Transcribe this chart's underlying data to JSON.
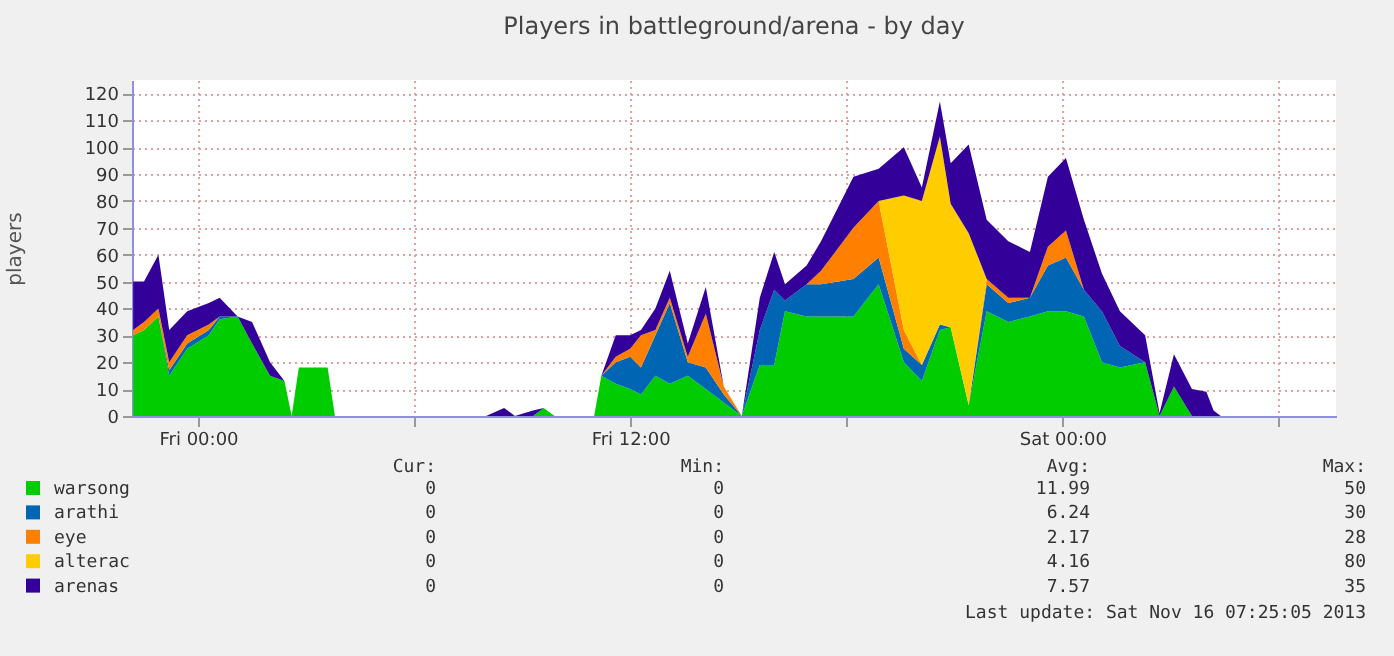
{
  "chart_data": {
    "type": "area",
    "stacked": true,
    "title": "Players in battleground/arena - by day",
    "ylabel": "players",
    "x": [
      "2013-11-14T22:12",
      "2013-11-14T22:30",
      "2013-11-14T22:54",
      "2013-11-14T23:12",
      "2013-11-14T23:42",
      "2013-11-15T00:18",
      "2013-11-15T00:36",
      "2013-11-15T01:06",
      "2013-11-15T01:30",
      "2013-11-15T02:00",
      "2013-11-15T02:24",
      "2013-11-15T02:36",
      "2013-11-15T02:48",
      "2013-11-15T03:36",
      "2013-11-15T03:48",
      "2013-11-15T08:00",
      "2013-11-15T08:30",
      "2013-11-15T08:48",
      "2013-11-15T09:18",
      "2013-11-15T09:36",
      "2013-11-15T09:54",
      "2013-11-15T11:00",
      "2013-11-15T11:12",
      "2013-11-15T11:36",
      "2013-11-15T12:00",
      "2013-11-15T12:18",
      "2013-11-15T12:42",
      "2013-11-15T13:06",
      "2013-11-15T13:36",
      "2013-11-15T14:06",
      "2013-11-15T14:36",
      "2013-11-15T15:06",
      "2013-11-15T15:36",
      "2013-11-15T16:00",
      "2013-11-15T16:18",
      "2013-11-15T16:54",
      "2013-11-15T17:18",
      "2013-11-15T18:12",
      "2013-11-15T18:54",
      "2013-11-15T19:36",
      "2013-11-15T20:06",
      "2013-11-15T20:36",
      "2013-11-15T20:54",
      "2013-11-15T21:24",
      "2013-11-15T21:54",
      "2013-11-15T22:30",
      "2013-11-15T23:06",
      "2013-11-15T23:36",
      "2013-11-16T00:06",
      "2013-11-16T00:36",
      "2013-11-16T01:06",
      "2013-11-16T01:36",
      "2013-11-16T02:18",
      "2013-11-16T02:42",
      "2013-11-16T03:06",
      "2013-11-16T03:36",
      "2013-11-16T04:00",
      "2013-11-16T04:12",
      "2013-11-16T04:24",
      "2013-11-16T07:36"
    ],
    "series": [
      {
        "name": "warsong",
        "color": "#00cc00",
        "values": [
          30,
          32,
          37,
          15,
          25,
          30,
          36,
          37,
          27,
          15,
          13,
          0,
          18,
          18,
          0,
          0,
          0,
          0,
          0,
          3,
          0,
          0,
          15,
          12,
          10,
          8,
          15,
          12,
          15,
          10,
          5,
          0,
          19,
          19,
          39,
          37,
          37,
          37,
          49,
          20,
          13,
          32,
          33,
          4,
          39,
          35,
          37,
          39,
          39,
          37,
          20,
          18,
          20,
          0,
          11,
          0,
          0,
          0,
          0,
          0
        ]
      },
      {
        "name": "arathi",
        "color": "#0066b3",
        "values": [
          0,
          0,
          0,
          2,
          2,
          2,
          1,
          0,
          0,
          0,
          0,
          0,
          0,
          0,
          0,
          0,
          0,
          0,
          0,
          0,
          0,
          0,
          0,
          8,
          12,
          10,
          15,
          30,
          5,
          8,
          3,
          0,
          13,
          28,
          4,
          12,
          12,
          14,
          10,
          5,
          6,
          2,
          0,
          0,
          10,
          7,
          7,
          17,
          20,
          10,
          19,
          8,
          0,
          0,
          0,
          0,
          0,
          0,
          0,
          0
        ]
      },
      {
        "name": "eye",
        "color": "#ff8000",
        "values": [
          2,
          3,
          3,
          3,
          3,
          2,
          0,
          0,
          0,
          0,
          0,
          0,
          0,
          0,
          0,
          0,
          0,
          0,
          0,
          0,
          0,
          0,
          0,
          2,
          3,
          12,
          2,
          2,
          2,
          20,
          3,
          0,
          0,
          0,
          0,
          0,
          5,
          19,
          21,
          7,
          0,
          0,
          0,
          0,
          2,
          2,
          0,
          7,
          10,
          0,
          0,
          0,
          0,
          0,
          0,
          0,
          0,
          0,
          0,
          0
        ]
      },
      {
        "name": "alterac",
        "color": "#ffcc00",
        "values": [
          0,
          0,
          0,
          0,
          0,
          0,
          0,
          0,
          0,
          0,
          0,
          0,
          0,
          0,
          0,
          0,
          0,
          0,
          0,
          0,
          0,
          0,
          0,
          0,
          0,
          0,
          0,
          0,
          0,
          0,
          0,
          0,
          0,
          0,
          0,
          0,
          0,
          0,
          0,
          50,
          61,
          70,
          46,
          64,
          0,
          0,
          0,
          0,
          0,
          0,
          0,
          0,
          0,
          0,
          0,
          0,
          0,
          0,
          0,
          0
        ]
      },
      {
        "name": "arenas",
        "color": "#330099",
        "values": [
          18,
          15,
          20,
          12,
          9,
          8,
          7,
          0,
          8,
          5,
          0,
          0,
          0,
          0,
          0,
          0,
          3,
          0,
          2,
          0,
          0,
          0,
          0,
          8,
          5,
          2,
          8,
          10,
          5,
          10,
          0,
          0,
          12,
          14,
          6,
          7,
          11,
          19,
          12,
          18,
          5,
          13,
          15,
          33,
          22,
          21,
          17,
          26,
          27,
          26,
          14,
          13,
          10,
          1,
          12,
          10,
          9,
          2,
          0,
          0
        ]
      }
    ],
    "xlim": [
      "2013-11-14T22:10",
      "2013-11-16T07:36"
    ],
    "xticks": [
      {
        "value": "2013-11-15T00:00",
        "label": "Fri 00:00"
      },
      {
        "value": "2013-11-15T06:00",
        "label": null
      },
      {
        "value": "2013-11-15T12:00",
        "label": "Fri 12:00"
      },
      {
        "value": "2013-11-15T18:00",
        "label": null
      },
      {
        "value": "2013-11-16T00:00",
        "label": "Sat 00:00"
      },
      {
        "value": "2013-11-16T06:00",
        "label": null
      }
    ],
    "ylim": [
      0,
      125
    ],
    "yticks": [
      0,
      10,
      20,
      30,
      40,
      50,
      60,
      70,
      80,
      90,
      100,
      110,
      120
    ],
    "grid": true,
    "legend": "bottom",
    "annotations": [
      "Cur:",
      "Min:",
      "Avg:",
      "Max:",
      "0",
      "0",
      "11.99",
      "50",
      "0",
      "0",
      "6.24",
      "30",
      "0",
      "0",
      "2.17",
      "28",
      "0",
      "0",
      "4.16",
      "80",
      "0",
      "0",
      "7.57",
      "35",
      "Last update:  Sat Nov 16 07:25:05 2013"
    ]
  }
}
